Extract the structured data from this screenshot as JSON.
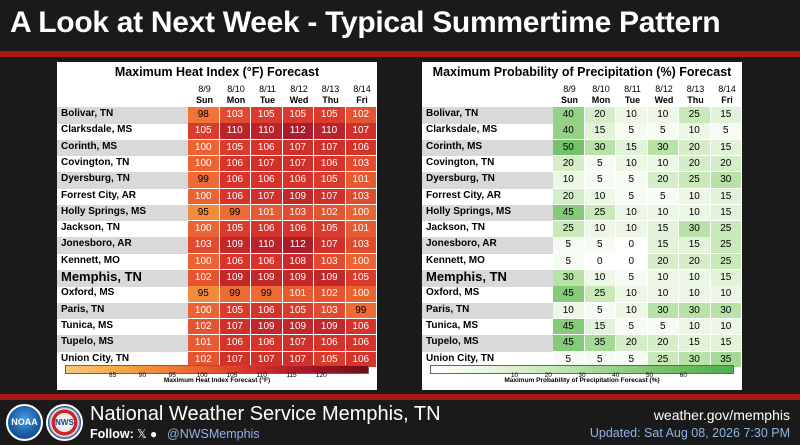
{
  "title": "A Look at Next Week - Typical Summertime Pattern",
  "days": [
    {
      "date": "8/9",
      "day": "Sun"
    },
    {
      "date": "8/10",
      "day": "Mon"
    },
    {
      "date": "8/11",
      "day": "Tue"
    },
    {
      "date": "8/12",
      "day": "Wed"
    },
    {
      "date": "8/13",
      "day": "Thu"
    },
    {
      "date": "8/14",
      "day": "Fri"
    }
  ],
  "cities": [
    "Bolivar, TN",
    "Clarksdale, MS",
    "Corinth, MS",
    "Covington, TN",
    "Dyersburg, TN",
    "Forrest City, AR",
    "Holly Springs, MS",
    "Jackson, TN",
    "Jonesboro, AR",
    "Kennett, MO",
    "Memphis, TN",
    "Oxford, MS",
    "Paris, TN",
    "Tunica, MS",
    "Tupelo, MS",
    "Union City, TN"
  ],
  "heat_index": {
    "title": "Maximum Heat Index (°F) Forecast",
    "scale_label": "Maximum Heat Index Forecast (°F)",
    "ticks": [
      "85",
      "90",
      "95",
      "100",
      "105",
      "110",
      "115",
      "120"
    ],
    "values": [
      [
        98,
        103,
        105,
        105,
        105,
        102
      ],
      [
        105,
        110,
        110,
        112,
        110,
        107
      ],
      [
        100,
        105,
        106,
        107,
        107,
        106
      ],
      [
        100,
        106,
        107,
        107,
        106,
        103
      ],
      [
        99,
        106,
        106,
        106,
        105,
        101
      ],
      [
        100,
        106,
        107,
        109,
        107,
        103
      ],
      [
        95,
        99,
        101,
        103,
        102,
        100
      ],
      [
        100,
        105,
        106,
        106,
        105,
        101
      ],
      [
        103,
        109,
        110,
        112,
        107,
        103
      ],
      [
        100,
        106,
        106,
        108,
        103,
        100
      ],
      [
        102,
        109,
        109,
        109,
        109,
        105
      ],
      [
        95,
        99,
        99,
        101,
        102,
        100
      ],
      [
        100,
        105,
        106,
        105,
        103,
        99
      ],
      [
        102,
        107,
        109,
        109,
        109,
        106
      ],
      [
        101,
        106,
        106,
        107,
        106,
        106
      ],
      [
        102,
        107,
        107,
        107,
        105,
        106
      ]
    ]
  },
  "precip": {
    "title": "Maximum Probability of Precipitation (%) Forecast",
    "scale_label": "Maximum Probability of Precipitation Forecast (%)",
    "ticks": [
      "10",
      "20",
      "30",
      "40",
      "50",
      "60"
    ],
    "values": [
      [
        40,
        20,
        10,
        10,
        25,
        15
      ],
      [
        40,
        15,
        5,
        5,
        10,
        5
      ],
      [
        50,
        30,
        15,
        30,
        20,
        15
      ],
      [
        20,
        5,
        10,
        10,
        20,
        20
      ],
      [
        10,
        5,
        5,
        20,
        25,
        30
      ],
      [
        20,
        10,
        5,
        5,
        10,
        15
      ],
      [
        45,
        25,
        10,
        10,
        10,
        15
      ],
      [
        25,
        10,
        10,
        15,
        30,
        25
      ],
      [
        5,
        5,
        0,
        15,
        15,
        25
      ],
      [
        5,
        0,
        0,
        20,
        20,
        25
      ],
      [
        30,
        10,
        5,
        10,
        10,
        15
      ],
      [
        45,
        25,
        10,
        10,
        10,
        10
      ],
      [
        10,
        5,
        10,
        30,
        30,
        30
      ],
      [
        45,
        15,
        5,
        5,
        10,
        10
      ],
      [
        45,
        35,
        20,
        20,
        15,
        15
      ],
      [
        5,
        5,
        5,
        25,
        30,
        35
      ]
    ]
  },
  "footer": {
    "logo_noaa": "NOAA",
    "logo_nws": "NWS",
    "office": "National Weather Service Memphis, TN",
    "follow": "Follow:",
    "social_icons": "𝕏 ●",
    "handle": "@NWSMemphis",
    "site": "weather.gov/memphis",
    "updated": "Updated: Sat Aug 08, 2026 7:30 PM"
  },
  "colors": {
    "red_line": "#a81717",
    "heat_low": "#f4a340",
    "heat_high": "#6b0f1a",
    "precip_low": "#f4fbf0",
    "precip_high": "#4caf50"
  }
}
